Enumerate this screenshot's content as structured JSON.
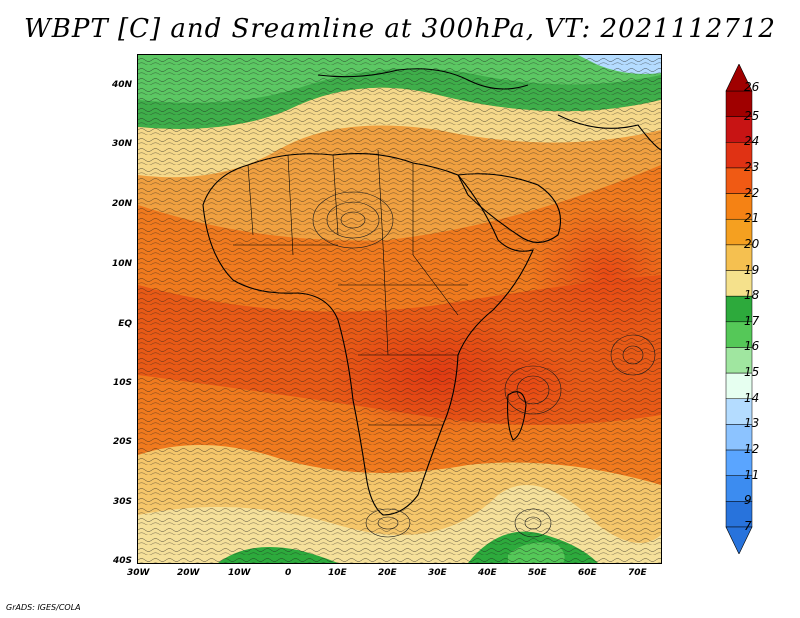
{
  "title": "WBPT [C] and Sreamline at 300hPa, VT: 2021112712",
  "credit": "GrADS: IGES/COLA",
  "lat_labels": [
    "40N",
    "30N",
    "20N",
    "10N",
    "EQ",
    "10S",
    "20S",
    "30S",
    "40S"
  ],
  "lon_labels": [
    "30W",
    "20W",
    "10W",
    "0",
    "10E",
    "20E",
    "30E",
    "40E",
    "50E",
    "60E",
    "70E"
  ],
  "colorbar": {
    "labels": [
      "26",
      "25",
      "24",
      "23",
      "22",
      "21",
      "20",
      "19",
      "18",
      "17",
      "16",
      "15",
      "14",
      "13",
      "12",
      "11",
      "9",
      "7"
    ],
    "colors": [
      "#a00000",
      "#c81414",
      "#e03214",
      "#f05a14",
      "#f58214",
      "#f5a020",
      "#f5c050",
      "#f5e18c",
      "#2daa3c",
      "#55c858",
      "#a0e6a0",
      "#e6fff0",
      "#b4dcff",
      "#8cc3ff",
      "#5aa5ff",
      "#3c8cf0",
      "#2873dc"
    ]
  }
}
